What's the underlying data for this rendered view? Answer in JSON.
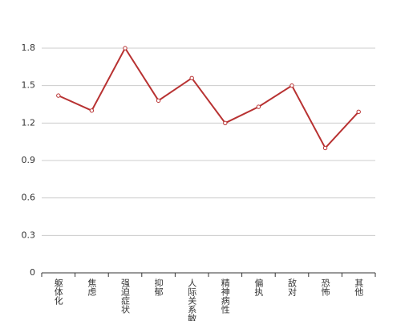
{
  "chart_data": {
    "type": "line",
    "categories": [
      "躯体化",
      "焦虑",
      "强迫症状",
      "抑郁",
      "人际关系敏感",
      "精神病性",
      "偏执",
      "敌对",
      "恐怖",
      "其他"
    ],
    "values": [
      1.42,
      1.3,
      1.8,
      1.38,
      1.56,
      1.2,
      1.33,
      1.5,
      1.0,
      1.29
    ],
    "color": "#b83232",
    "ylim": [
      0,
      1.8
    ],
    "yticks": [
      0,
      0.3,
      0.6,
      0.9,
      1.2,
      1.5,
      1.8
    ],
    "grid": true
  }
}
